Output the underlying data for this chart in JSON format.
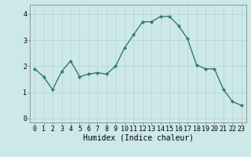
{
  "x": [
    0,
    1,
    2,
    3,
    4,
    5,
    6,
    7,
    8,
    9,
    10,
    11,
    12,
    13,
    14,
    15,
    16,
    17,
    18,
    19,
    20,
    21,
    22,
    23
  ],
  "y": [
    1.9,
    1.6,
    1.1,
    1.8,
    2.2,
    1.6,
    1.7,
    1.75,
    1.7,
    2.0,
    2.7,
    3.2,
    3.7,
    3.7,
    3.9,
    3.9,
    3.55,
    3.05,
    2.05,
    1.9,
    1.9,
    1.1,
    0.65,
    0.5
  ],
  "line_color": "#2e7d6e",
  "marker": "D",
  "markersize": 2.0,
  "linewidth": 1.0,
  "bg_color": "#cce8e8",
  "grid_color_major": "#b8d4d4",
  "grid_color_minor": "#d4e8e8",
  "xlabel": "Humidex (Indice chaleur)",
  "xlim": [
    -0.5,
    23.5
  ],
  "ylim": [
    -0.15,
    4.35
  ],
  "yticks": [
    0,
    1,
    2,
    3,
    4
  ],
  "xticks": [
    0,
    1,
    2,
    3,
    4,
    5,
    6,
    7,
    8,
    9,
    10,
    11,
    12,
    13,
    14,
    15,
    16,
    17,
    18,
    19,
    20,
    21,
    22,
    23
  ],
  "xlabel_fontsize": 7.0,
  "tick_fontsize": 6.0,
  "spine_color": "#888888"
}
